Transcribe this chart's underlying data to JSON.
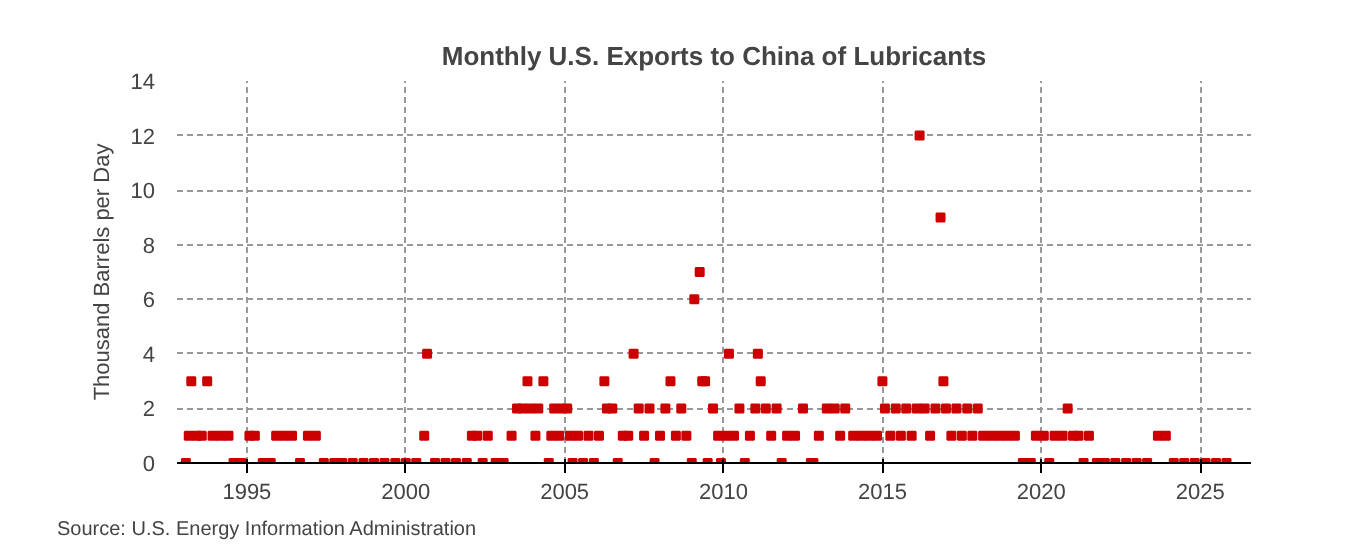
{
  "chart_data": {
    "type": "scatter",
    "title": "Monthly U.S. Exports to China of Lubricants",
    "ylabel": "Thousand Barrels per Day",
    "annotations": [
      "Source: U.S. Energy Information Administration"
    ],
    "x": [
      1993.08,
      1993.17,
      1993.25,
      1993.42,
      1993.58,
      1993.75,
      1993.92,
      1994.17,
      1994.42,
      1994.58,
      1994.83,
      1995.08,
      1995.25,
      1995.5,
      1995.75,
      1995.92,
      1996.17,
      1996.42,
      1996.67,
      1996.92,
      1997.17,
      1997.42,
      1997.75,
      1998.0,
      1998.33,
      1998.67,
      1999.0,
      1999.33,
      1999.67,
      2000.0,
      2000.33,
      2000.58,
      2000.67,
      2000.92,
      2001.25,
      2001.58,
      2001.92,
      2002.08,
      2002.25,
      2002.42,
      2002.58,
      2002.83,
      2003.08,
      2003.33,
      2003.5,
      2003.67,
      2003.83,
      2003.92,
      2004.08,
      2004.17,
      2004.33,
      2004.5,
      2004.58,
      2004.67,
      2004.83,
      2004.92,
      2005.08,
      2005.17,
      2005.25,
      2005.42,
      2005.58,
      2005.75,
      2005.92,
      2006.08,
      2006.25,
      2006.33,
      2006.5,
      2006.67,
      2006.83,
      2007.0,
      2007.17,
      2007.33,
      2007.5,
      2007.67,
      2007.83,
      2008.0,
      2008.17,
      2008.33,
      2008.5,
      2008.67,
      2008.83,
      2009.0,
      2009.08,
      2009.25,
      2009.33,
      2009.42,
      2009.5,
      2009.67,
      2009.83,
      2009.92,
      2010.08,
      2010.17,
      2010.33,
      2010.5,
      2010.67,
      2010.83,
      2011.0,
      2011.08,
      2011.17,
      2011.33,
      2011.5,
      2011.67,
      2011.83,
      2012.0,
      2012.25,
      2012.5,
      2012.75,
      2012.83,
      2013.0,
      2013.25,
      2013.5,
      2013.67,
      2013.83,
      2014.08,
      2014.33,
      2014.58,
      2014.83,
      2015.0,
      2015.08,
      2015.25,
      2015.42,
      2015.58,
      2015.75,
      2015.92,
      2016.08,
      2016.17,
      2016.33,
      2016.5,
      2016.67,
      2016.83,
      2016.92,
      2017.0,
      2017.17,
      2017.33,
      2017.5,
      2017.67,
      2017.83,
      2018.0,
      2018.17,
      2018.42,
      2018.67,
      2018.92,
      2019.17,
      2019.42,
      2019.67,
      2019.83,
      2020.08,
      2020.25,
      2020.42,
      2020.67,
      2020.83,
      2021.0,
      2021.17,
      2021.33,
      2021.5,
      2021.75,
      2022.0,
      2022.33,
      2022.67,
      2023.0,
      2023.33,
      2023.67,
      2023.92,
      2024.17,
      2024.5,
      2024.83,
      2025.17,
      2025.5,
      2025.83
    ],
    "series": [
      {
        "color": "#cc0000",
        "values": [
          0,
          1,
          3,
          1,
          1,
          3,
          1,
          1,
          1,
          0,
          0,
          1,
          1,
          0,
          0,
          1,
          1,
          1,
          0,
          1,
          1,
          0,
          0,
          0,
          0,
          0,
          0,
          0,
          0,
          0,
          0,
          1,
          4,
          0,
          0,
          0,
          0,
          1,
          1,
          0,
          1,
          0,
          0,
          1,
          2,
          2,
          3,
          2,
          1,
          2,
          3,
          0,
          1,
          2,
          1,
          2,
          2,
          1,
          0,
          1,
          0,
          1,
          0,
          1,
          3,
          2,
          2,
          0,
          1,
          1,
          4,
          2,
          1,
          2,
          0,
          1,
          2,
          3,
          1,
          2,
          1,
          0,
          6,
          7,
          3,
          3,
          0,
          2,
          1,
          0,
          1,
          4,
          1,
          2,
          0,
          1,
          2,
          4,
          3,
          2,
          1,
          2,
          0,
          1,
          1,
          2,
          0,
          0,
          1,
          2,
          2,
          1,
          2,
          1,
          1,
          1,
          1,
          3,
          2,
          1,
          2,
          1,
          2,
          1,
          2,
          12,
          2,
          1,
          2,
          9,
          3,
          2,
          1,
          2,
          1,
          2,
          1,
          2,
          1,
          1,
          1,
          1,
          1,
          0,
          0,
          1,
          1,
          0,
          1,
          1,
          2,
          1,
          1,
          0,
          1,
          0,
          0,
          0,
          0,
          0,
          0,
          1,
          1,
          0,
          0,
          0,
          0,
          0,
          0
        ]
      }
    ],
    "xlim": [
      1992.8,
      2026.6
    ],
    "xticks": [
      1995,
      2000,
      2005,
      2010,
      2015,
      2020,
      2025
    ],
    "ylim": [
      0,
      14
    ],
    "yticks": [
      0,
      2,
      4,
      6,
      8,
      10,
      12,
      14
    ],
    "grid": true,
    "marker": "square"
  }
}
